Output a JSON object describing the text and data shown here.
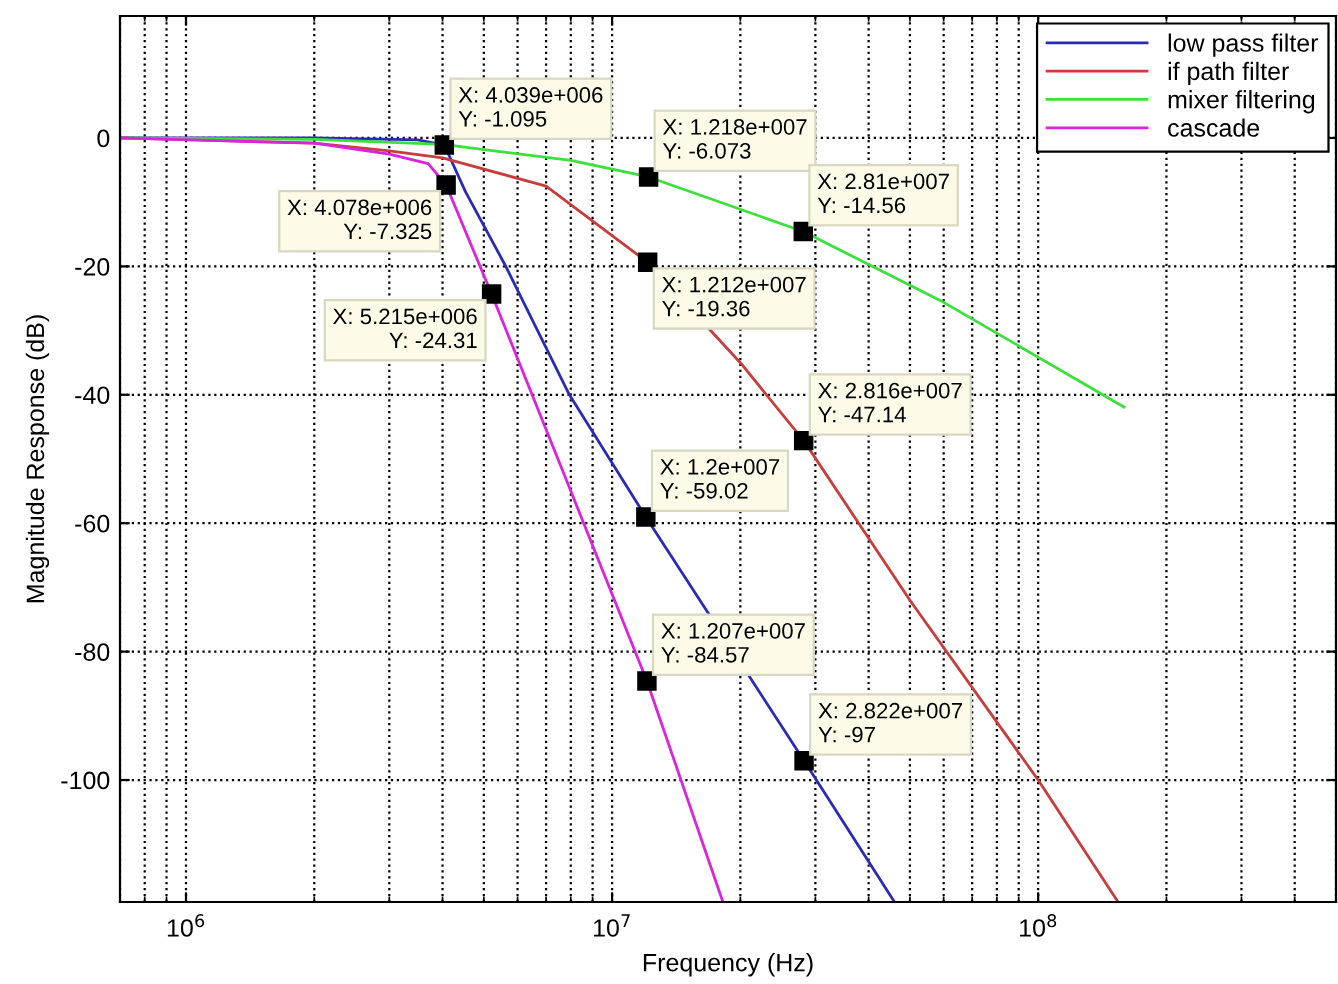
{
  "chart_data": {
    "type": "line",
    "xlabel": "Frequency (Hz)",
    "ylabel": "Magnitude Response (dB)",
    "log": "x",
    "grid": true,
    "legend": "top right",
    "line_style": "solid",
    "marker": "none",
    "xlim": [
      700000,
      500000000
    ],
    "ylim": [
      -119,
      19
    ],
    "xticks": [
      {
        "value": 1000000,
        "label": "10$^{6}$"
      },
      {
        "value": 10000000,
        "label": "10$^{7}$"
      },
      {
        "value": 100000000,
        "label": "10$^{8}$"
      }
    ],
    "yticks": [
      -100,
      -80,
      -60,
      -40,
      -20,
      0
    ],
    "series": [
      {
        "name": "low pass filter",
        "color": "#2a2ab8",
        "x": [
          700000,
          2000000,
          3500000,
          4039000,
          4530000,
          5600000,
          7940000,
          12000000,
          28220000,
          46000000
        ],
        "values": [
          0,
          0,
          -0.3,
          -1.095,
          -8.4,
          -19.7,
          -40,
          -59.02,
          -97,
          -119
        ]
      },
      {
        "name": "if path filter",
        "color": "#c83c3c",
        "x": [
          700000,
          2000000,
          3000000,
          4000000,
          7000000,
          12120000,
          20000000,
          28160000,
          50000000,
          100000000,
          154000000
        ],
        "values": [
          0,
          -0.8,
          -2,
          -3.1,
          -7.5,
          -19.36,
          -35,
          -47.14,
          -72,
          -100,
          -119
        ]
      },
      {
        "name": "mixer filtering",
        "color": "#3ce03c",
        "x": [
          700000,
          2000000,
          4000000,
          8000000,
          12180000,
          28100000,
          60000000,
          159000000
        ],
        "values": [
          0,
          -0.2,
          -1,
          -3.5,
          -6.073,
          -14.56,
          -25.6,
          -41.9
        ]
      },
      {
        "name": "cascade",
        "color": "#dd22dd",
        "x": [
          700000,
          2000000,
          3000000,
          3700000,
          4078000,
          5215000,
          8000000,
          12070000,
          18200000
        ],
        "values": [
          0,
          -0.8,
          -2.5,
          -4,
          -7.325,
          -24.31,
          -55,
          -84.57,
          -119
        ]
      }
    ],
    "annotations": [
      {
        "text": "X: 4.039e+006\nY: -1.095",
        "x": 4039000,
        "y": -1.095
      },
      {
        "text": "X: 4.078e+006\nY: -7.325",
        "x": 4078000,
        "y": -7.325
      },
      {
        "text": "X: 5.215e+006\nY: -24.31",
        "x": 5215000,
        "y": -24.31
      },
      {
        "text": "X: 1.218e+007\nY: -6.073",
        "x": 12180000,
        "y": -6.073
      },
      {
        "text": "X: 1.212e+007\nY: -19.36",
        "x": 12120000,
        "y": -19.36
      },
      {
        "text": "X: 2.81e+007\nY: -14.56",
        "x": 28100000,
        "y": -14.56
      },
      {
        "text": "X: 2.816e+007\nY: -47.14",
        "x": 28160000,
        "y": -47.14
      },
      {
        "text": "X: 1.2e+007\nY: -59.02",
        "x": 12000000,
        "y": -59.02
      },
      {
        "text": "X: 1.207e+007\nY: -84.57",
        "x": 12070000,
        "y": -84.57
      },
      {
        "text": "X: 2.822e+007\nY: -97",
        "x": 28220000,
        "y": -97
      }
    ]
  }
}
